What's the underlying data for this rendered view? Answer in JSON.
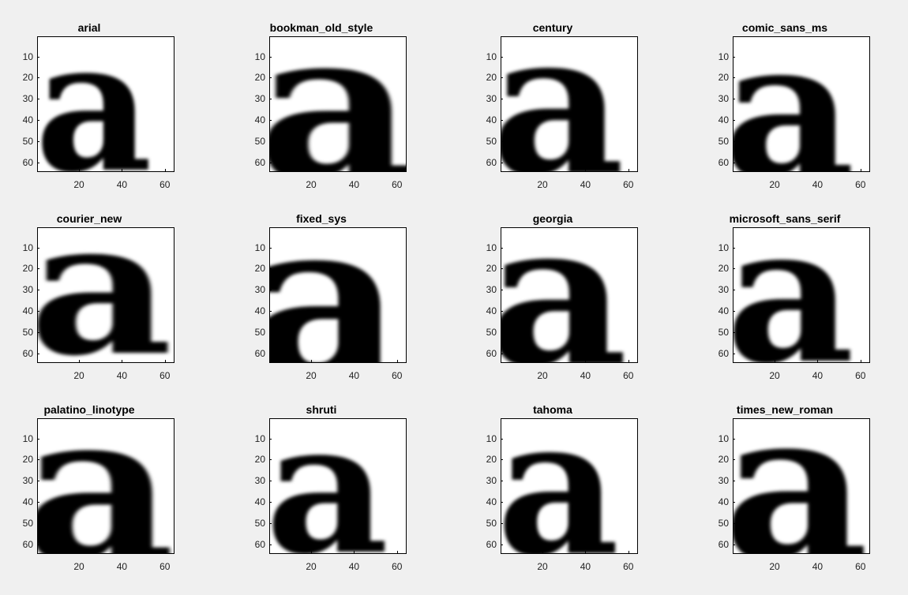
{
  "chart_data": [
    {
      "type": "heatmap",
      "title": "arial",
      "xlim": [
        1,
        64
      ],
      "ylim": [
        1,
        64
      ],
      "xticks": [
        20,
        40,
        60
      ],
      "yticks": [
        10,
        20,
        30,
        40,
        50,
        60
      ],
      "colormap": "gray",
      "glyph": "a"
    },
    {
      "type": "heatmap",
      "title": "bookman_old_style",
      "xlim": [
        1,
        64
      ],
      "ylim": [
        1,
        64
      ],
      "xticks": [
        20,
        40,
        60
      ],
      "yticks": [
        10,
        20,
        30,
        40,
        50,
        60
      ],
      "colormap": "gray",
      "glyph": "a"
    },
    {
      "type": "heatmap",
      "title": "century",
      "xlim": [
        1,
        64
      ],
      "ylim": [
        1,
        64
      ],
      "xticks": [
        20,
        40,
        60
      ],
      "yticks": [
        10,
        20,
        30,
        40,
        50,
        60
      ],
      "colormap": "gray",
      "glyph": "a"
    },
    {
      "type": "heatmap",
      "title": "comic_sans_ms",
      "xlim": [
        1,
        64
      ],
      "ylim": [
        1,
        64
      ],
      "xticks": [
        20,
        40,
        60
      ],
      "yticks": [
        10,
        20,
        30,
        40,
        50,
        60
      ],
      "colormap": "gray",
      "glyph": "a"
    },
    {
      "type": "heatmap",
      "title": "courier_new",
      "xlim": [
        1,
        64
      ],
      "ylim": [
        1,
        64
      ],
      "xticks": [
        20,
        40,
        60
      ],
      "yticks": [
        10,
        20,
        30,
        40,
        50,
        60
      ],
      "colormap": "gray",
      "glyph": "a"
    },
    {
      "type": "heatmap",
      "title": "fixed_sys",
      "xlim": [
        1,
        64
      ],
      "ylim": [
        1,
        64
      ],
      "xticks": [
        20,
        40,
        60
      ],
      "yticks": [
        10,
        20,
        30,
        40,
        50,
        60
      ],
      "colormap": "gray",
      "glyph": "a"
    },
    {
      "type": "heatmap",
      "title": "georgia",
      "xlim": [
        1,
        64
      ],
      "ylim": [
        1,
        64
      ],
      "xticks": [
        20,
        40,
        60
      ],
      "yticks": [
        10,
        20,
        30,
        40,
        50,
        60
      ],
      "colormap": "gray",
      "glyph": "a"
    },
    {
      "type": "heatmap",
      "title": "microsoft_sans_serif",
      "xlim": [
        1,
        64
      ],
      "ylim": [
        1,
        64
      ],
      "xticks": [
        20,
        40,
        60
      ],
      "yticks": [
        10,
        20,
        30,
        40,
        50,
        60
      ],
      "colormap": "gray",
      "glyph": "a"
    },
    {
      "type": "heatmap",
      "title": "palatino_linotype",
      "xlim": [
        1,
        64
      ],
      "ylim": [
        1,
        64
      ],
      "xticks": [
        20,
        40,
        60
      ],
      "yticks": [
        10,
        20,
        30,
        40,
        50,
        60
      ],
      "colormap": "gray",
      "glyph": "a"
    },
    {
      "type": "heatmap",
      "title": "shruti",
      "xlim": [
        1,
        64
      ],
      "ylim": [
        1,
        64
      ],
      "xticks": [
        20,
        40,
        60
      ],
      "yticks": [
        10,
        20,
        30,
        40,
        50,
        60
      ],
      "colormap": "gray",
      "glyph": "a"
    },
    {
      "type": "heatmap",
      "title": "tahoma",
      "xlim": [
        1,
        64
      ],
      "ylim": [
        1,
        64
      ],
      "xticks": [
        20,
        40,
        60
      ],
      "yticks": [
        10,
        20,
        30,
        40,
        50,
        60
      ],
      "colormap": "gray",
      "glyph": "a"
    },
    {
      "type": "heatmap",
      "title": "times_new_roman",
      "xlim": [
        1,
        64
      ],
      "ylim": [
        1,
        64
      ],
      "xticks": [
        20,
        40,
        60
      ],
      "yticks": [
        10,
        20,
        30,
        40,
        50,
        60
      ],
      "colormap": "gray",
      "glyph": "a"
    }
  ],
  "colors": {
    "background": "#f0f0f0",
    "plot_background": "#ffffff",
    "glyph": "#000000",
    "axis": "#000000"
  }
}
